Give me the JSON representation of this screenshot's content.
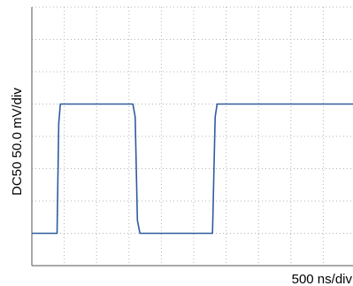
{
  "chart_data": {
    "type": "line",
    "title": "",
    "ylabel": "DC50    50.0 mV/div",
    "xlabel": "500 ns/div",
    "grid": true,
    "x_divisions": 10,
    "y_divisions": 8,
    "xlim": [
      0,
      5000
    ],
    "ylim": [
      -50,
      350
    ],
    "series": [
      {
        "values_x": [
          0,
          325,
          390,
          415,
          440,
          700,
          1000,
          1300,
          1560,
          1595,
          1630,
          1670,
          1800,
          2200,
          2600,
          2750,
          2790,
          2830,
          2860,
          3200,
          3600,
          4000,
          4300,
          4600,
          5000
        ],
        "values_y": [
          0,
          0,
          0,
          170,
          200,
          200,
          200,
          200,
          200,
          180,
          20,
          0,
          0,
          0,
          0,
          0,
          0,
          180,
          200,
          200,
          200,
          200,
          200,
          200,
          200
        ]
      }
    ]
  }
}
